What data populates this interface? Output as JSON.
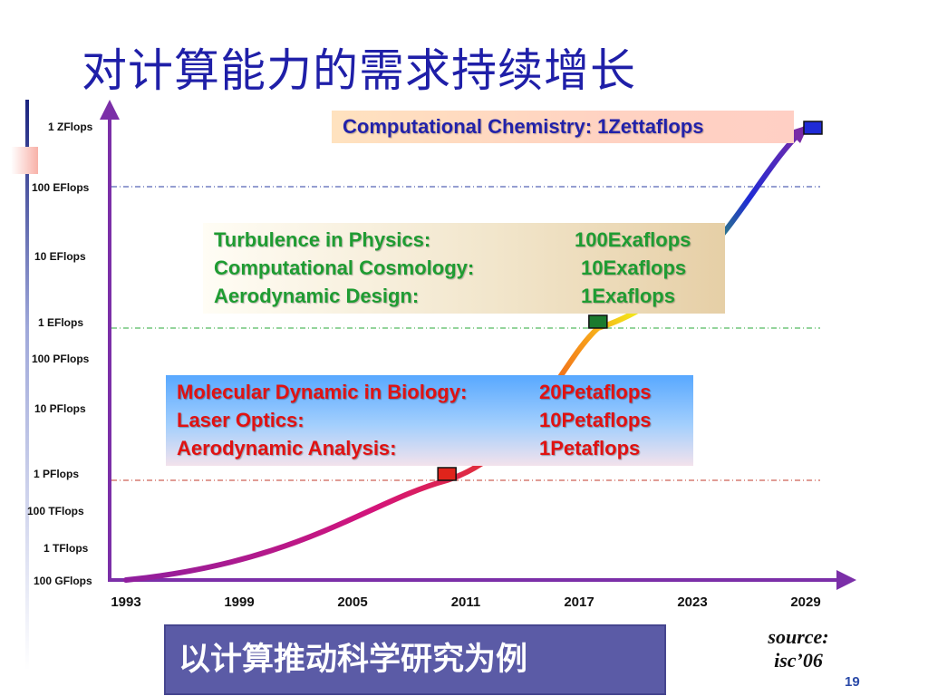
{
  "slide": {
    "title": "对计算能力的需求持续增长",
    "banner": "以计算推动科学研究为例",
    "source_line1": "source:",
    "source_line2": "isc’06",
    "page_number": "19"
  },
  "chart_data": {
    "type": "line",
    "title": "",
    "xlabel": "",
    "ylabel": "",
    "categories": [
      "1993",
      "1999",
      "2005",
      "2011",
      "2017",
      "2023",
      "2029"
    ],
    "xlim": [
      1993,
      2029
    ],
    "y_levels": [
      "100 GFlops",
      "1 TFlops",
      "100 TFlops",
      "1 PFlops",
      "10 PFlops",
      "100 PFlops",
      "1 EFlops",
      "10 EFlops",
      "100 EFlops",
      "1 ZFlops"
    ],
    "y_scale": "log",
    "grid_lines": [
      {
        "level": "100 EFlops",
        "color": "#2b3ca3"
      },
      {
        "level": "1 EFlops",
        "color": "#29a83a"
      },
      {
        "level": "1 PFlops",
        "color": "#c0392b"
      }
    ],
    "series": [
      {
        "points": [
          {
            "x": 1993,
            "y_flops": "100 GFlops"
          },
          {
            "x": 2010,
            "y_flops": "1 PFlops"
          },
          {
            "x": 2018,
            "y_flops": "1 EFlops"
          },
          {
            "x": 2029,
            "y_flops": "1 ZFlops"
          }
        ]
      }
    ],
    "markers": [
      {
        "x": 2010,
        "y_flops": "1 PFlops",
        "color": "#e0241b"
      },
      {
        "x": 2018,
        "y_flops": "1 EFlops",
        "color": "#1a7a2e"
      },
      {
        "x": 2029,
        "y_flops": "1 ZFlops",
        "color": "#1f2bd6"
      }
    ],
    "annotations": {
      "zetta": "Computational Chemistry: 1Zettaflops",
      "exa": [
        {
          "label": "Turbulence in Physics:",
          "value": "100Exaflops"
        },
        {
          "label": "Computational Cosmology:",
          "value": "10Exaflops"
        },
        {
          "label": "Aerodynamic Design:",
          "value": "1Exaflops"
        }
      ],
      "peta": [
        {
          "label": "Molecular Dynamic in Biology:",
          "value": "20Petaflops"
        },
        {
          "label": "Laser Optics:",
          "value": "10Petaflops"
        },
        {
          "label": "Aerodynamic Analysis:",
          "value": "1Petaflops"
        }
      ]
    }
  }
}
